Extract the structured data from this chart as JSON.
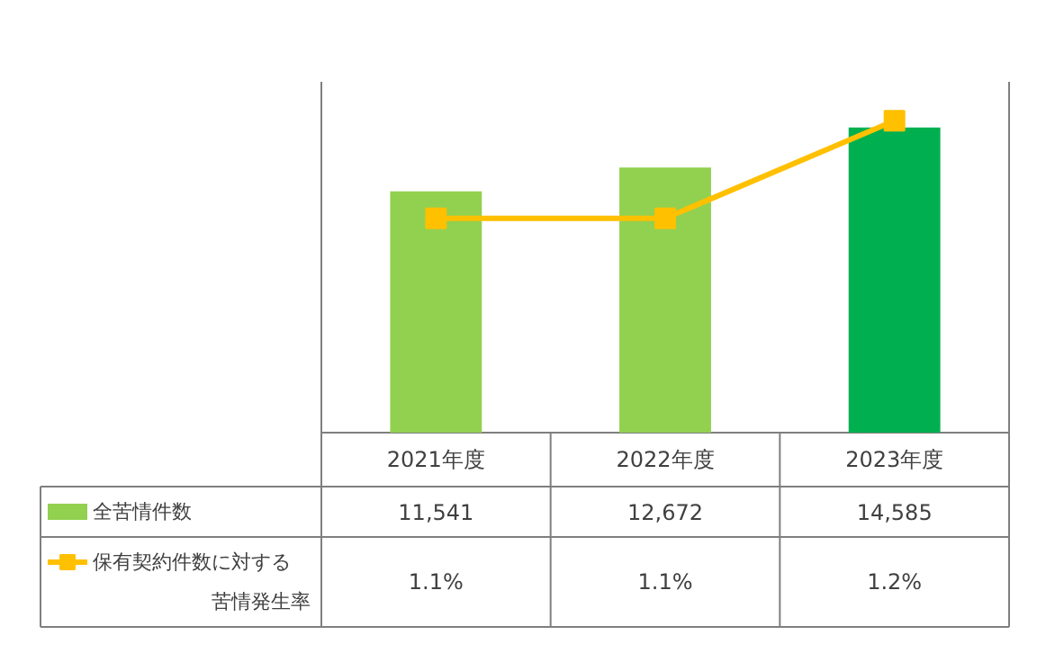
{
  "chart_data": {
    "type": "bar",
    "categories": [
      "2021年度",
      "2022年度",
      "2023年度"
    ],
    "tick_labels": "x",
    "legend": "bottom left",
    "series": [
      {
        "name": "全苦情件数",
        "color": "#92d050",
        "colors": [
          "#92d050",
          "#92d050",
          "#00b050"
        ],
        "values": [
          11541,
          12672,
          14585
        ],
        "value_labels": [
          "11,541",
          "12,672",
          "14,585"
        ]
      },
      {
        "name": "保有契約件数に対する苦情発生率",
        "type": "line",
        "axis": "y2",
        "color": "#ffc000",
        "marker": "square",
        "values": [
          1.1,
          1.1,
          1.2
        ],
        "value_labels": [
          "1.1%",
          "1.1%",
          "1.2%"
        ]
      }
    ]
  }
}
